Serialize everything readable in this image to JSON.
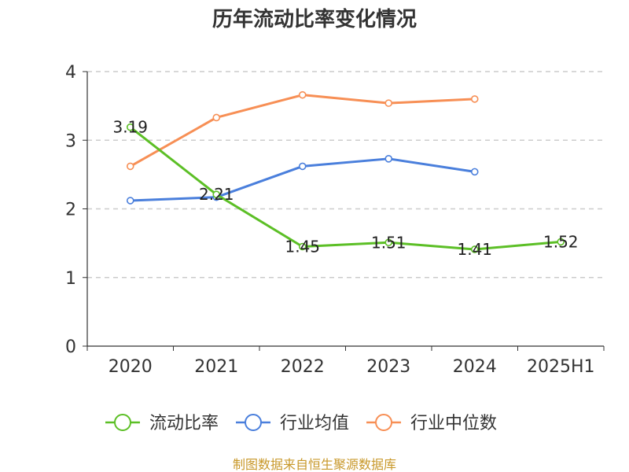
{
  "chart_data": {
    "type": "line",
    "title": "历年流动比率变化情况",
    "categories": [
      "2020",
      "2021",
      "2022",
      "2023",
      "2024",
      "2025H1"
    ],
    "ylim": [
      0,
      4
    ],
    "yticks": [
      "0",
      "1",
      "2",
      "3",
      "4"
    ],
    "grid": true,
    "legend_position": "bottom",
    "series": [
      {
        "name": "流动比率",
        "color": "#5cbf26",
        "values": [
          3.19,
          2.21,
          1.45,
          1.51,
          1.41,
          1.52
        ],
        "labels": [
          "3.19",
          "2.21",
          "1.45",
          "1.51",
          "1.41",
          "1.52"
        ]
      },
      {
        "name": "行业均值",
        "color": "#4a7fdc",
        "values": [
          2.12,
          2.17,
          2.62,
          2.73,
          2.54,
          null
        ]
      },
      {
        "name": "行业中位数",
        "color": "#f78f55",
        "values": [
          2.62,
          3.33,
          3.66,
          3.54,
          3.6,
          null
        ]
      }
    ]
  },
  "source": "制图数据来自恒生聚源数据库"
}
